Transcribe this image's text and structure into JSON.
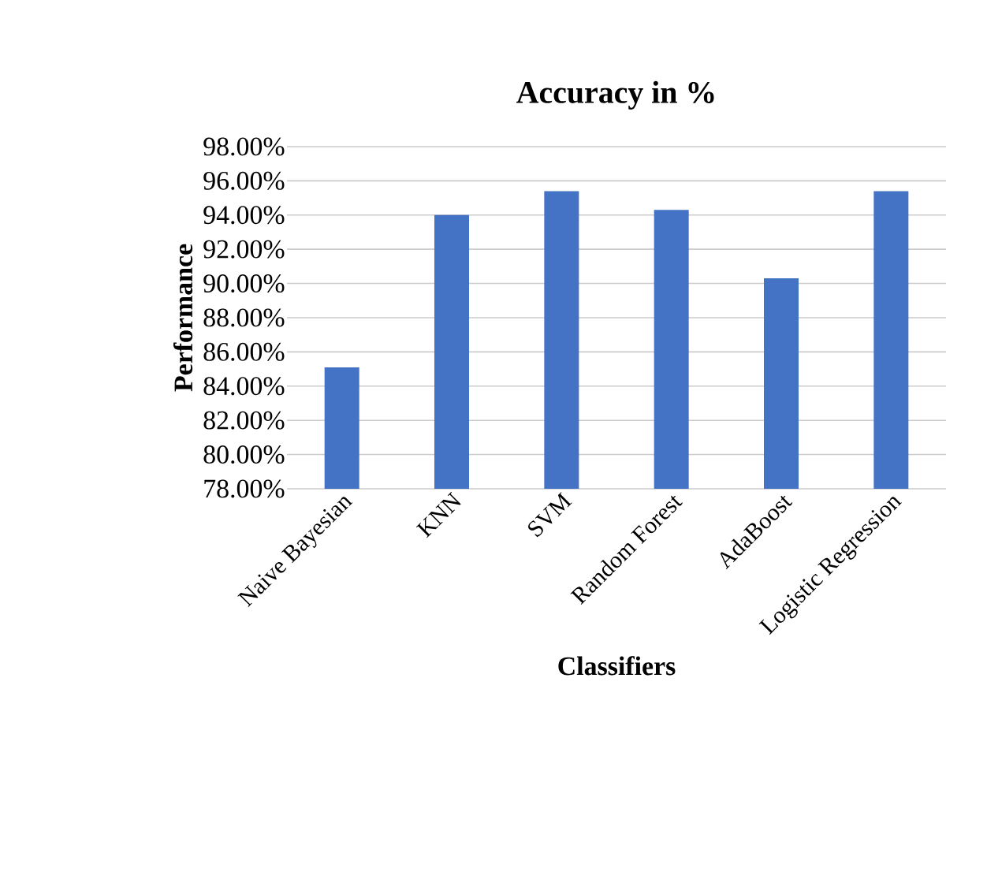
{
  "chart_data": {
    "type": "bar",
    "title": "Accuracy in %",
    "xlabel": "Classifiers",
    "ylabel": "Performance",
    "categories": [
      "Naive Bayesian",
      "KNN",
      "SVM",
      "Random Forest",
      "AdaBoost",
      "Logistic Regression"
    ],
    "values": [
      85.1,
      94.0,
      95.4,
      94.3,
      90.3,
      95.4
    ],
    "color": "#4472c4",
    "ylim": [
      78,
      98
    ],
    "yticks": [
      {
        "value": 78,
        "label": "78.00%"
      },
      {
        "value": 80,
        "label": "80.00%"
      },
      {
        "value": 82,
        "label": "82.00%"
      },
      {
        "value": 84,
        "label": "84.00%"
      },
      {
        "value": 86,
        "label": "86.00%"
      },
      {
        "value": 88,
        "label": "88.00%"
      },
      {
        "value": 90,
        "label": "90.00%"
      },
      {
        "value": 92,
        "label": "92.00%"
      },
      {
        "value": 94,
        "label": "94.00%"
      },
      {
        "value": 96,
        "label": "96.00%"
      },
      {
        "value": 98,
        "label": "98.00%"
      }
    ],
    "grid": "y"
  }
}
